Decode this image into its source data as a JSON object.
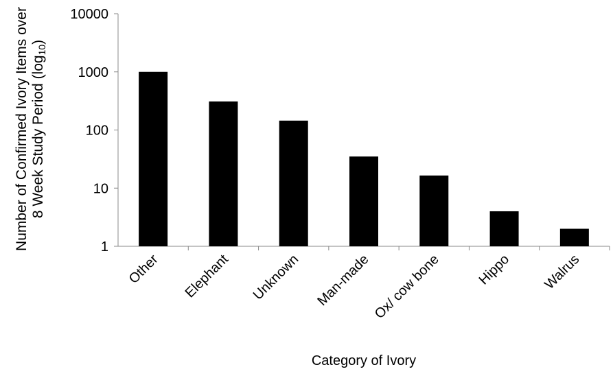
{
  "chart_data": {
    "type": "bar",
    "title": "",
    "xlabel": "Category of Ivory",
    "ylabel": "Number of Confirmed Ivory Items over",
    "ylabel_line2": "8 Week Study Period (log",
    "ylabel_subscript": "10",
    "ylabel_close": ")",
    "yscale": "log",
    "ylim": [
      1,
      10000
    ],
    "yticks": [
      1,
      10,
      100,
      1000,
      10000
    ],
    "ytick_labels": [
      "1",
      "10",
      "100",
      "1000",
      "10000"
    ],
    "categories": [
      "Other",
      "Elephant",
      "Unknown",
      "Man-made",
      "Ox/ cow bone",
      "Hippo",
      "Walrus"
    ],
    "values": [
      1000,
      310,
      145,
      35,
      16.5,
      4,
      2
    ],
    "bar_color": "#000000",
    "grid": false,
    "legend": "none"
  }
}
